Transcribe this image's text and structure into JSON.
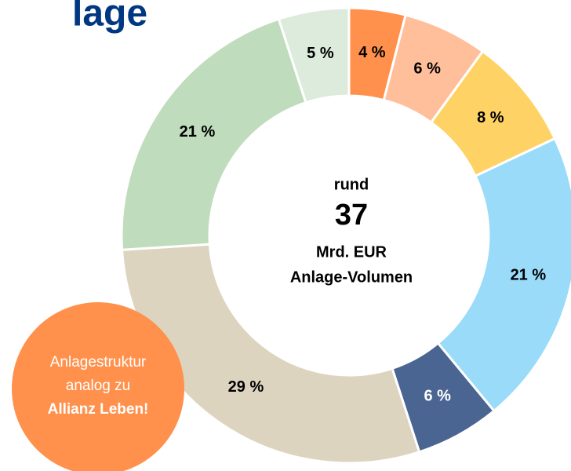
{
  "chart_data": {
    "type": "donut",
    "title": "lage",
    "values": [
      4,
      6,
      8,
      21,
      6,
      29,
      21,
      5
    ],
    "value_labels": [
      "4 %",
      "6 %",
      "8 %",
      "21 %",
      "6 %",
      "29 %",
      "21 %",
      "5 %"
    ],
    "colors": [
      "#ff914d",
      "#ffbf9b",
      "#ffd266",
      "#99dbf8",
      "#4a6591",
      "#ddd4bf",
      "#bfdcbc",
      "#dcebdc"
    ],
    "center_text": [
      "rund",
      "37",
      "Mrd. EUR",
      "Anlage-Volumen"
    ],
    "callout": [
      "Anlagestruktur",
      "analog zu",
      "Allianz Leben!"
    ]
  }
}
